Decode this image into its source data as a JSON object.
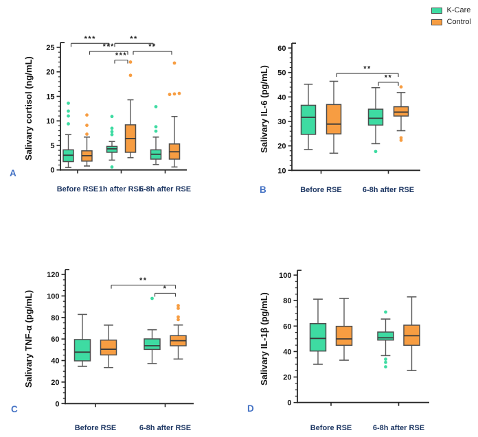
{
  "legend": {
    "items": [
      {
        "label": "K-Care",
        "color": "#3edba2"
      },
      {
        "label": "Control",
        "color": "#f79d42"
      }
    ]
  },
  "styles": {
    "box_border": "#4d4d4d",
    "whisker": "#5a5a5a",
    "median": "#3a3a3a",
    "axis": "#262626",
    "tick_label": "#111111",
    "category_label": "#1f3864",
    "panel_letter": "#4472c4",
    "bracket": "#454545",
    "asterisk": "#222222"
  },
  "chart_data": [
    {
      "type": "box",
      "panel": "A",
      "ylabel": "Salivary cortisol (ng/mL)",
      "ylim": [
        0,
        25
      ],
      "ytick_step": 5,
      "minor_step": 1,
      "categories": [
        "Before RSE",
        "1h after RSE",
        "6-8h after RSE"
      ],
      "series": [
        {
          "name": "K-Care",
          "boxes": [
            {
              "lo": 0.5,
              "q1": 1.7,
              "med": 3.0,
              "q3": 4.1,
              "hi": 7.2,
              "outliers": [
                9.4,
                11.0,
                12.0,
                13.6
              ]
            },
            {
              "lo": 2.0,
              "q1": 3.6,
              "med": 4.3,
              "q3": 4.8,
              "hi": 5.8,
              "outliers": [
                0.6,
                7.2,
                7.8,
                8.5,
                10.9
              ]
            },
            {
              "lo": 1.1,
              "q1": 2.2,
              "med": 3.2,
              "q3": 4.1,
              "hi": 6.7,
              "outliers": [
                7.9,
                8.8,
                12.9
              ]
            }
          ]
        },
        {
          "name": "Control",
          "boxes": [
            {
              "lo": 0.8,
              "q1": 1.8,
              "med": 2.9,
              "q3": 3.9,
              "hi": 6.7,
              "outliers": [
                7.3,
                9.1,
                11.2
              ]
            },
            {
              "lo": 2.5,
              "q1": 3.6,
              "med": 6.4,
              "q3": 9.2,
              "hi": 14.3,
              "outliers": [
                19.3,
                22.0
              ]
            },
            {
              "lo": 0.6,
              "q1": 2.2,
              "med": 3.7,
              "q3": 5.3,
              "hi": 10.9,
              "outliers": [
                15.4,
                15.6,
                15.5,
                21.8
              ]
            }
          ]
        }
      ],
      "brackets": [
        {
          "from": [
            0,
            0
          ],
          "to": [
            1,
            0
          ],
          "y": 25.8,
          "label": "***"
        },
        {
          "from": [
            0,
            1
          ],
          "to": [
            1,
            1
          ],
          "y": 24.2,
          "label": "***"
        },
        {
          "from": [
            1,
            0
          ],
          "to": [
            1,
            1
          ],
          "y": 22.4,
          "label": "***"
        },
        {
          "from": [
            1,
            0
          ],
          "to": [
            2,
            0
          ],
          "y": 25.8,
          "label": "**"
        },
        {
          "from": [
            1,
            1
          ],
          "to": [
            2,
            1
          ],
          "y": 24.2,
          "label": "**"
        }
      ]
    },
    {
      "type": "box",
      "panel": "B",
      "ylabel": "Salivary IL-6 (pg/mL)",
      "ylim": [
        10,
        60
      ],
      "ytick_step": 10,
      "minor_step": 2,
      "categories": [
        "Before RSE",
        "6-8h after RSE"
      ],
      "series": [
        {
          "name": "K-Care",
          "boxes": [
            {
              "lo": 18.5,
              "q1": 24.7,
              "med": 31.7,
              "q3": 36.6,
              "hi": 45.2,
              "outliers": []
            },
            {
              "lo": 20.9,
              "q1": 28.5,
              "med": 31.3,
              "q3": 35.0,
              "hi": 43.8,
              "outliers": [
                17.7
              ]
            }
          ]
        },
        {
          "name": "Control",
          "boxes": [
            {
              "lo": 17.0,
              "q1": 24.9,
              "med": 28.9,
              "q3": 36.9,
              "hi": 46.4,
              "outliers": []
            },
            {
              "lo": 26.2,
              "q1": 32.2,
              "med": 33.8,
              "q3": 36.0,
              "hi": 41.8,
              "outliers": [
                22.3,
                23.3,
                44.1
              ]
            }
          ]
        }
      ],
      "brackets": [
        {
          "from": [
            0,
            1
          ],
          "to": [
            1,
            1
          ],
          "y": 49.6,
          "label": "**"
        },
        {
          "from": [
            1,
            0
          ],
          "to": [
            1,
            1
          ],
          "y": 46.0,
          "label": "**"
        }
      ]
    },
    {
      "type": "box",
      "panel": "C",
      "ylabel": "Salivary TNF-α (pg/mL)",
      "ylim": [
        0,
        120
      ],
      "ytick_step": 20,
      "minor_step": 5,
      "categories": [
        "Before RSE",
        "6-8h after RSE"
      ],
      "series": [
        {
          "name": "K-Care",
          "boxes": [
            {
              "lo": 34.6,
              "q1": 39.7,
              "med": 47.8,
              "q3": 59.5,
              "hi": 82.8,
              "outliers": []
            },
            {
              "lo": 37.2,
              "q1": 50.3,
              "med": 53.7,
              "q3": 60.1,
              "hi": 68.6,
              "outliers": [
                97.7
              ]
            }
          ]
        },
        {
          "name": "Control",
          "boxes": [
            {
              "lo": 33.5,
              "q1": 45.2,
              "med": 50.5,
              "q3": 59.0,
              "hi": 72.9,
              "outliers": []
            },
            {
              "lo": 41.4,
              "q1": 53.7,
              "med": 58.4,
              "q3": 63.1,
              "hi": 73.0,
              "outliers": [
                78.0,
                80.5,
                88.5,
                91.0
              ]
            }
          ]
        }
      ],
      "brackets": [
        {
          "from": [
            0,
            1
          ],
          "to": [
            1,
            1
          ],
          "y": 110.0,
          "label": "**"
        },
        {
          "from": [
            1,
            0
          ],
          "to": [
            1,
            1
          ],
          "y": 102.5,
          "label": "*"
        }
      ]
    },
    {
      "type": "box",
      "panel": "D",
      "ylabel": "Salivary IL-1β (pg/mL)",
      "ylim": [
        0,
        100
      ],
      "ytick_step": 20,
      "minor_step": 5,
      "categories": [
        "Before RSE",
        "6-8h after RSE"
      ],
      "series": [
        {
          "name": "K-Care",
          "boxes": [
            {
              "lo": 30.0,
              "q1": 40.4,
              "med": 50.3,
              "q3": 61.9,
              "hi": 81.1,
              "outliers": []
            },
            {
              "lo": 36.8,
              "q1": 49.0,
              "med": 50.8,
              "q3": 55.3,
              "hi": 65.5,
              "outliers": [
                28.0,
                31.5,
                34.0,
                71.0
              ]
            }
          ]
        },
        {
          "name": "Control",
          "boxes": [
            {
              "lo": 33.2,
              "q1": 44.9,
              "med": 49.9,
              "q3": 59.8,
              "hi": 81.7,
              "outliers": []
            },
            {
              "lo": 25.1,
              "q1": 44.9,
              "med": 52.4,
              "q3": 60.7,
              "hi": 82.9,
              "outliers": []
            }
          ]
        }
      ],
      "brackets": []
    }
  ]
}
